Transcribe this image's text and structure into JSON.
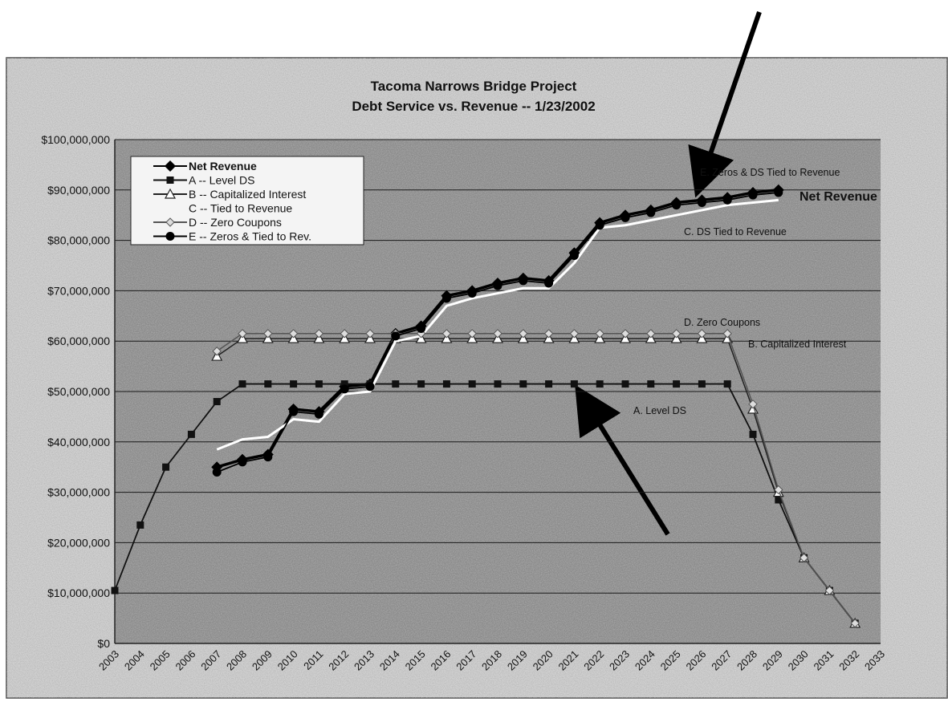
{
  "chart_data": {
    "type": "line",
    "title": "Tacoma Narrows Bridge Project",
    "subtitle": "Debt Service vs. Revenue -- 1/23/2002",
    "categories": [
      "2003",
      "2004",
      "2005",
      "2006",
      "2007",
      "2008",
      "2009",
      "2010",
      "2011",
      "2012",
      "2013",
      "2014",
      "2015",
      "2016",
      "2017",
      "2018",
      "2019",
      "2020",
      "2021",
      "2022",
      "2023",
      "2024",
      "2025",
      "2026",
      "2027",
      "2028",
      "2029",
      "2030",
      "2031",
      "2032",
      "2033"
    ],
    "ylim": [
      0,
      100000000
    ],
    "yticks": [
      {
        "value": 0,
        "label": "$0"
      },
      {
        "value": 10000000,
        "label": "$10,000,000"
      },
      {
        "value": 20000000,
        "label": "$20,000,000"
      },
      {
        "value": 30000000,
        "label": "$30,000,000"
      },
      {
        "value": 40000000,
        "label": "$40,000,000"
      },
      {
        "value": 50000000,
        "label": "$50,000,000"
      },
      {
        "value": 60000000,
        "label": "$60,000,000"
      },
      {
        "value": 70000000,
        "label": "$70,000,000"
      },
      {
        "value": 80000000,
        "label": "$80,000,000"
      },
      {
        "value": 90000000,
        "label": "$90,000,000"
      },
      {
        "value": 100000000,
        "label": "$100,000,000"
      }
    ],
    "grid": true,
    "legend": "upper left",
    "series": [
      {
        "name": "Net Revenue",
        "color": "#000000",
        "marker": "diamond",
        "values": [
          null,
          null,
          null,
          null,
          35000000,
          36500000,
          37500000,
          46500000,
          46000000,
          51000000,
          51500000,
          61500000,
          63000000,
          69000000,
          70000000,
          71500000,
          72500000,
          72000000,
          77500000,
          83500000,
          85000000,
          86000000,
          87500000,
          88000000,
          88500000,
          89500000,
          90000000,
          null,
          null,
          null,
          null
        ]
      },
      {
        "name": "A -- Level DS",
        "color": "#111111",
        "marker": "square",
        "values": [
          10500000,
          23500000,
          35000000,
          41500000,
          48000000,
          51500000,
          51500000,
          51500000,
          51500000,
          51500000,
          51500000,
          51500000,
          51500000,
          51500000,
          51500000,
          51500000,
          51500000,
          51500000,
          51500000,
          51500000,
          51500000,
          51500000,
          51500000,
          51500000,
          51500000,
          41500000,
          28500000,
          17000000,
          10500000,
          4000000,
          null
        ]
      },
      {
        "name": "B -- Capitalized Interest",
        "color": "#222222",
        "marker": "triangle",
        "values": [
          null,
          null,
          null,
          null,
          57000000,
          60500000,
          60500000,
          60500000,
          60500000,
          60500000,
          60500000,
          60500000,
          60500000,
          60500000,
          60500000,
          60500000,
          60500000,
          60500000,
          60500000,
          60500000,
          60500000,
          60500000,
          60500000,
          60500000,
          60500000,
          46500000,
          30000000,
          17000000,
          10500000,
          4000000,
          null
        ]
      },
      {
        "name": "C -- Tied to Revenue",
        "color": "#ffffff",
        "marker": "none",
        "values": [
          null,
          null,
          null,
          null,
          38500000,
          40500000,
          41000000,
          44500000,
          44000000,
          49500000,
          50000000,
          60000000,
          61000000,
          67000000,
          68500000,
          69500000,
          70500000,
          70500000,
          75500000,
          82500000,
          83000000,
          84000000,
          85000000,
          86000000,
          87000000,
          87500000,
          88000000,
          null,
          null,
          null,
          null
        ]
      },
      {
        "name": "D -- Zero Coupons",
        "color": "#555555",
        "marker": "diamond-small",
        "values": [
          null,
          null,
          null,
          null,
          58000000,
          61500000,
          61500000,
          61500000,
          61500000,
          61500000,
          61500000,
          61500000,
          61500000,
          61500000,
          61500000,
          61500000,
          61500000,
          61500000,
          61500000,
          61500000,
          61500000,
          61500000,
          61500000,
          61500000,
          61500000,
          47500000,
          30500000,
          17000000,
          10500000,
          4000000,
          null
        ]
      },
      {
        "name": "E -- Zeros & Tied to Rev.",
        "color": "#000000",
        "marker": "circle",
        "values": [
          null,
          null,
          null,
          null,
          34000000,
          36000000,
          37000000,
          46000000,
          45500000,
          50500000,
          51000000,
          61000000,
          62500000,
          68500000,
          69500000,
          71000000,
          72000000,
          71500000,
          77000000,
          83000000,
          84500000,
          85500000,
          87000000,
          87500000,
          88000000,
          89000000,
          89500000,
          null,
          null,
          null,
          null
        ]
      }
    ],
    "annotations": [
      "E. Zeros & DS Tied to Revenue",
      "Net Revenue",
      "C. DS Tied to Revenue",
      "D. Zero Coupons",
      "B. Capitalized Interest",
      "A. Level DS"
    ]
  }
}
